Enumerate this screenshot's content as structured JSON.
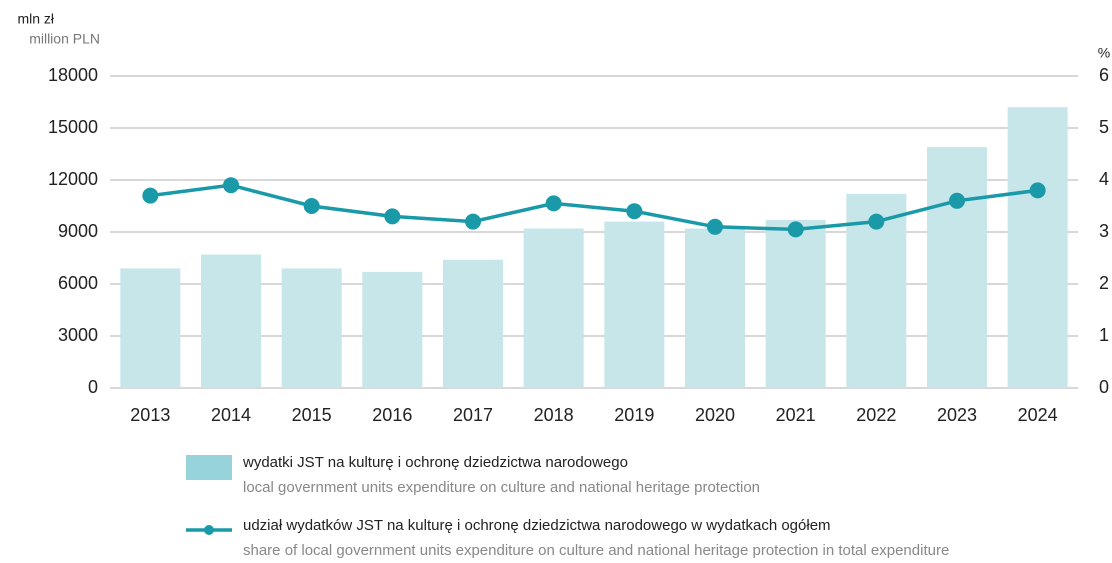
{
  "chart_data": {
    "type": "bar-line",
    "y_unit": "mln zł",
    "y_unit_en": "million PLN",
    "y2_unit": "%",
    "categories": [
      "2013",
      "2014",
      "2015",
      "2016",
      "2017",
      "2018",
      "2019",
      "2020",
      "2021",
      "2022",
      "2023",
      "2024"
    ],
    "series": [
      {
        "name": "wydatki JST na kulturę i ochronę dziedzictwa narodowego",
        "name_en": "local government units expenditure on culture and national heritage protection",
        "type": "bar",
        "color": "#c7e6ea",
        "legend_color": "#96d3da",
        "axis": "y",
        "values": [
          6900,
          7700,
          6900,
          6700,
          7400,
          9200,
          9600,
          9200,
          9700,
          11200,
          13900,
          16200
        ]
      },
      {
        "name": "udział wydatków JST na kulturę i ochronę dziedzictwa narodowego w wydatkach ogółem",
        "name_en": "share of local government units expenditure on culture and national heritage protection in total expenditure",
        "type": "line",
        "color": "#1a9aa8",
        "axis": "y2",
        "values": [
          3.7,
          3.9,
          3.5,
          3.3,
          3.2,
          3.55,
          3.4,
          3.1,
          3.05,
          3.2,
          3.6,
          3.8
        ]
      }
    ],
    "ylim": [
      0,
      18000
    ],
    "yticks": [
      0,
      3000,
      6000,
      9000,
      12000,
      15000,
      18000
    ],
    "y2lim": [
      0,
      6
    ],
    "y2ticks": [
      0,
      1,
      2,
      3,
      4,
      5,
      6
    ],
    "grid": true
  }
}
